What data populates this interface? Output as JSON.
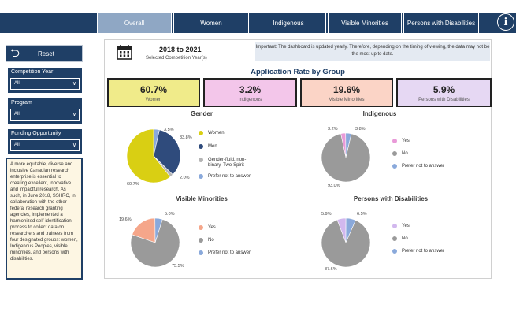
{
  "nav": {
    "tabs": [
      {
        "label": "Overall",
        "active": true
      },
      {
        "label": "Women",
        "active": false
      },
      {
        "label": "Indigenous",
        "active": false
      },
      {
        "label": "Visible Minorities",
        "active": false
      },
      {
        "label": "Persons with Disabilities",
        "active": false
      }
    ],
    "info_icon": "i"
  },
  "sidebar": {
    "reset_label": "Reset",
    "filters": [
      {
        "label": "Competition Year",
        "value": "All"
      },
      {
        "label": "Program",
        "value": "All"
      },
      {
        "label": "Funding Opportunity",
        "value": "All"
      }
    ],
    "note": "A more equitable, diverse and inclusive Canadian research enterprise is essential to creating excellent, innovative and impactful research. As such, in June 2018, SSHRC, in collaboration with the other federal research granting agencies, implemented a harmonized self-identification process to collect data on researchers and trainees from four designated groups: women, Indigenous Peoples, visible minorities, and persons with disabilities."
  },
  "header": {
    "year_range": "2018 to 2021",
    "year_sub": "Selected Competition Year(s)",
    "important": "Important: The dashboard is updated yearly. Therefore, depending on the timing of viewing, the data may not be the most up to date."
  },
  "rate_title": "Application Rate by Group",
  "cards": [
    {
      "value": "60.7%",
      "label": "Women",
      "color": "#f0eb8a"
    },
    {
      "value": "3.2%",
      "label": "Indigenous",
      "color": "#f3c6ea"
    },
    {
      "value": "19.6%",
      "label": "Visible Minorities",
      "color": "#fbd4c6"
    },
    {
      "value": "5.9%",
      "label": "Persons with Disabilities",
      "color": "#e6d8f3"
    }
  ],
  "chart_data": [
    {
      "type": "pie",
      "title": "Gender",
      "categories": [
        "Women",
        "Men",
        "Gender-fluid, non-binary, Two-Spirit",
        "Prefer not to answer"
      ],
      "values": [
        60.7,
        33.8,
        2.0,
        3.5
      ],
      "labels": [
        "60.7%",
        "33.8%",
        "2.0%",
        "3.5%"
      ],
      "colors": [
        "#d9cf13",
        "#2f4b7c",
        "#b5b5b5",
        "#8aa9db"
      ]
    },
    {
      "type": "pie",
      "title": "Indigenous",
      "categories": [
        "Yes",
        "No",
        "Prefer not to answer"
      ],
      "values": [
        3.2,
        93.0,
        3.8
      ],
      "labels": [
        "3.2%",
        "93.0%",
        "3.8%"
      ],
      "colors": [
        "#e99ad8",
        "#9a9a9a",
        "#8aa9db"
      ]
    },
    {
      "type": "pie",
      "title": "Visible Minorities",
      "categories": [
        "Yes",
        "No",
        "Prefer not to answer"
      ],
      "values": [
        19.6,
        75.5,
        5.0
      ],
      "labels": [
        "19.6%",
        "75.5%",
        "5.0%"
      ],
      "colors": [
        "#f5a68a",
        "#9a9a9a",
        "#8aa9db"
      ]
    },
    {
      "type": "pie",
      "title": "Persons with Disabilities",
      "categories": [
        "Yes",
        "No",
        "Prefer not to answer"
      ],
      "values": [
        5.9,
        87.6,
        6.5
      ],
      "labels": [
        "5.9%",
        "87.6%",
        "6.5%"
      ],
      "colors": [
        "#d2b8ee",
        "#9a9a9a",
        "#8aa9db"
      ]
    }
  ]
}
